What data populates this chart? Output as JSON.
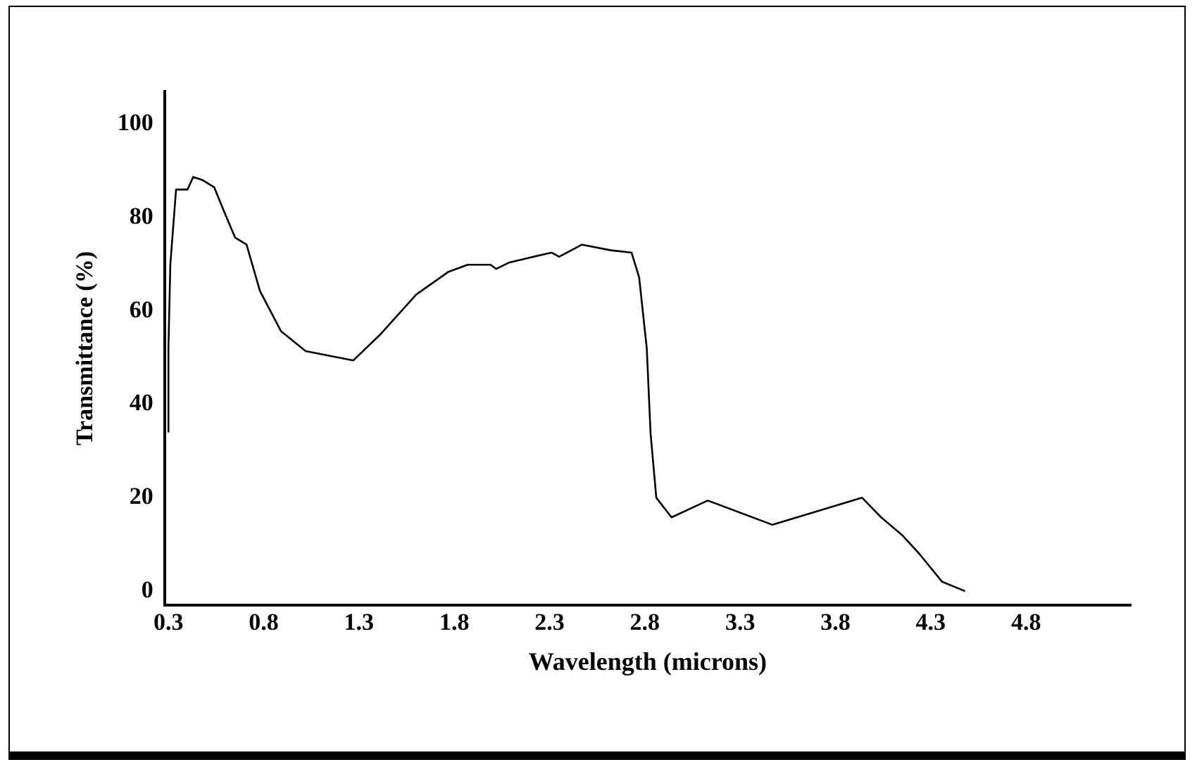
{
  "chart_data": {
    "type": "line",
    "xlabel": "Wavelength (microns)",
    "ylabel": "Transmittance (%)",
    "xlim": [
      0.28,
      5.35
    ],
    "xticks": [
      0.3,
      0.8,
      1.3,
      1.8,
      2.3,
      2.8,
      3.3,
      3.8,
      4.3,
      4.8
    ],
    "ylim": [
      -3,
      107
    ],
    "yticks": [
      0,
      20,
      40,
      60,
      80,
      100
    ],
    "grid": false,
    "legend": false,
    "marker": "none",
    "line_style": "solid",
    "series": [
      {
        "color": "#000000",
        "x": [
          0.3,
          0.3,
          0.31,
          0.34,
          0.4,
          0.43,
          0.48,
          0.54,
          0.59,
          0.65,
          0.71,
          0.78,
          0.89,
          1.02,
          1.27,
          1.41,
          1.6,
          1.77,
          1.87,
          1.99,
          2.02,
          2.09,
          2.31,
          2.35,
          2.47,
          2.62,
          2.73,
          2.77,
          2.81,
          2.83,
          2.86,
          2.94,
          3.13,
          3.47,
          3.94,
          4.04,
          4.15,
          4.24,
          4.36,
          4.48
        ],
        "values": [
          34,
          52,
          70,
          86,
          86,
          88.7,
          88,
          86.5,
          81.5,
          75.7,
          74.2,
          64.3,
          55.7,
          51.4,
          49.4,
          54.9,
          63.5,
          68.4,
          69.9,
          69.9,
          69,
          70.4,
          72.5,
          71.6,
          74.2,
          73,
          72.5,
          67.2,
          52,
          33.8,
          20,
          15.8,
          19.4,
          14.2,
          20,
          15.8,
          12,
          8,
          2,
          0
        ]
      }
    ]
  }
}
